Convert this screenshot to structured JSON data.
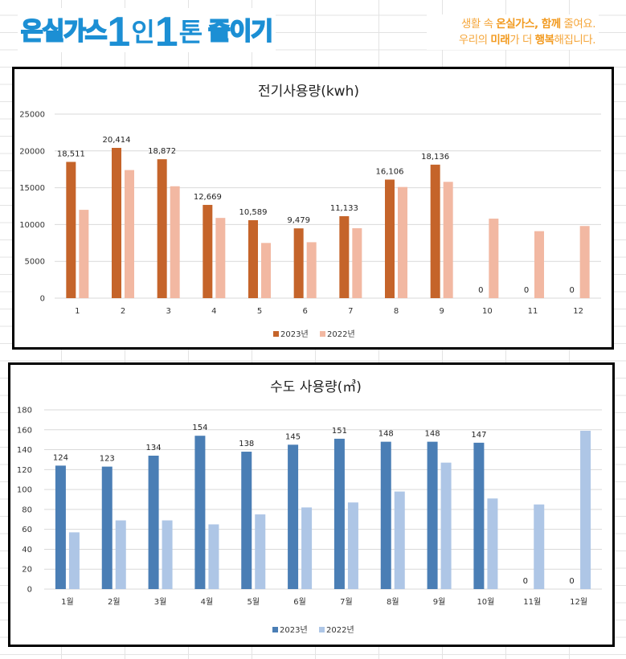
{
  "banner": {
    "logo_part1": "온실가스",
    "logo_one_a": "1",
    "logo_part2": "인",
    "logo_one_b": "1",
    "logo_part3": "톤",
    "logo_part4": "줄이기",
    "slogan_line1_a": "생활 속 ",
    "slogan_line1_b": "온실가스, 함께",
    "slogan_line1_c": " 줄여요.",
    "slogan_line2_a": "우리의 ",
    "slogan_line2_b": "미래",
    "slogan_line2_c": "가 더 ",
    "slogan_line2_d": "행복",
    "slogan_line2_e": "해집니다.",
    "logo_color": "#1c8fd4",
    "slogan_color": "#f5a63a"
  },
  "chart_data": [
    {
      "type": "bar",
      "title": "전기사용량(kwh)",
      "xlabel": "",
      "ylabel": "",
      "categories": [
        "1",
        "2",
        "3",
        "4",
        "5",
        "6",
        "7",
        "8",
        "9",
        "10",
        "11",
        "12"
      ],
      "ylim": [
        0,
        25000
      ],
      "yticks": [
        0,
        5000,
        10000,
        15000,
        20000,
        25000
      ],
      "grid": true,
      "legend": "bottom-center",
      "series": [
        {
          "name": "2023년",
          "color": "#c5642a",
          "values": [
            18511,
            20414,
            18872,
            12669,
            10589,
            9479,
            11133,
            16106,
            18136,
            0,
            0,
            0
          ],
          "labels": [
            "18,511",
            "20,414",
            "18,872",
            "12,669",
            "10,589",
            "9,479",
            "11,133",
            "16,106",
            "18,136",
            "0",
            "0",
            "0"
          ]
        },
        {
          "name": "2022년",
          "color": "#f2b8a2",
          "values": [
            12000,
            17400,
            15200,
            10900,
            7500,
            7600,
            9500,
            15100,
            15800,
            10800,
            9100,
            9800
          ],
          "labels": null
        }
      ]
    },
    {
      "type": "bar",
      "title": "수도 사용량(㎥)",
      "xlabel": "",
      "ylabel": "",
      "categories": [
        "1월",
        "2월",
        "3월",
        "4월",
        "5월",
        "6월",
        "7월",
        "8월",
        "9월",
        "10월",
        "11월",
        "12월"
      ],
      "ylim": [
        0,
        180
      ],
      "yticks": [
        0,
        20,
        40,
        60,
        80,
        100,
        120,
        140,
        160,
        180
      ],
      "grid": true,
      "legend": "bottom-center",
      "series": [
        {
          "name": "2023년",
          "color": "#4a7eb5",
          "values": [
            124,
            123,
            134,
            154,
            138,
            145,
            151,
            148,
            148,
            147,
            0,
            0
          ],
          "labels": [
            "124",
            "123",
            "134",
            "154",
            "138",
            "145",
            "151",
            "148",
            "148",
            "147",
            "0",
            "0"
          ]
        },
        {
          "name": "2022년",
          "color": "#aec6e6",
          "values": [
            57,
            69,
            69,
            65,
            75,
            82,
            87,
            98,
            127,
            91,
            85,
            159
          ],
          "labels": null
        }
      ]
    }
  ]
}
